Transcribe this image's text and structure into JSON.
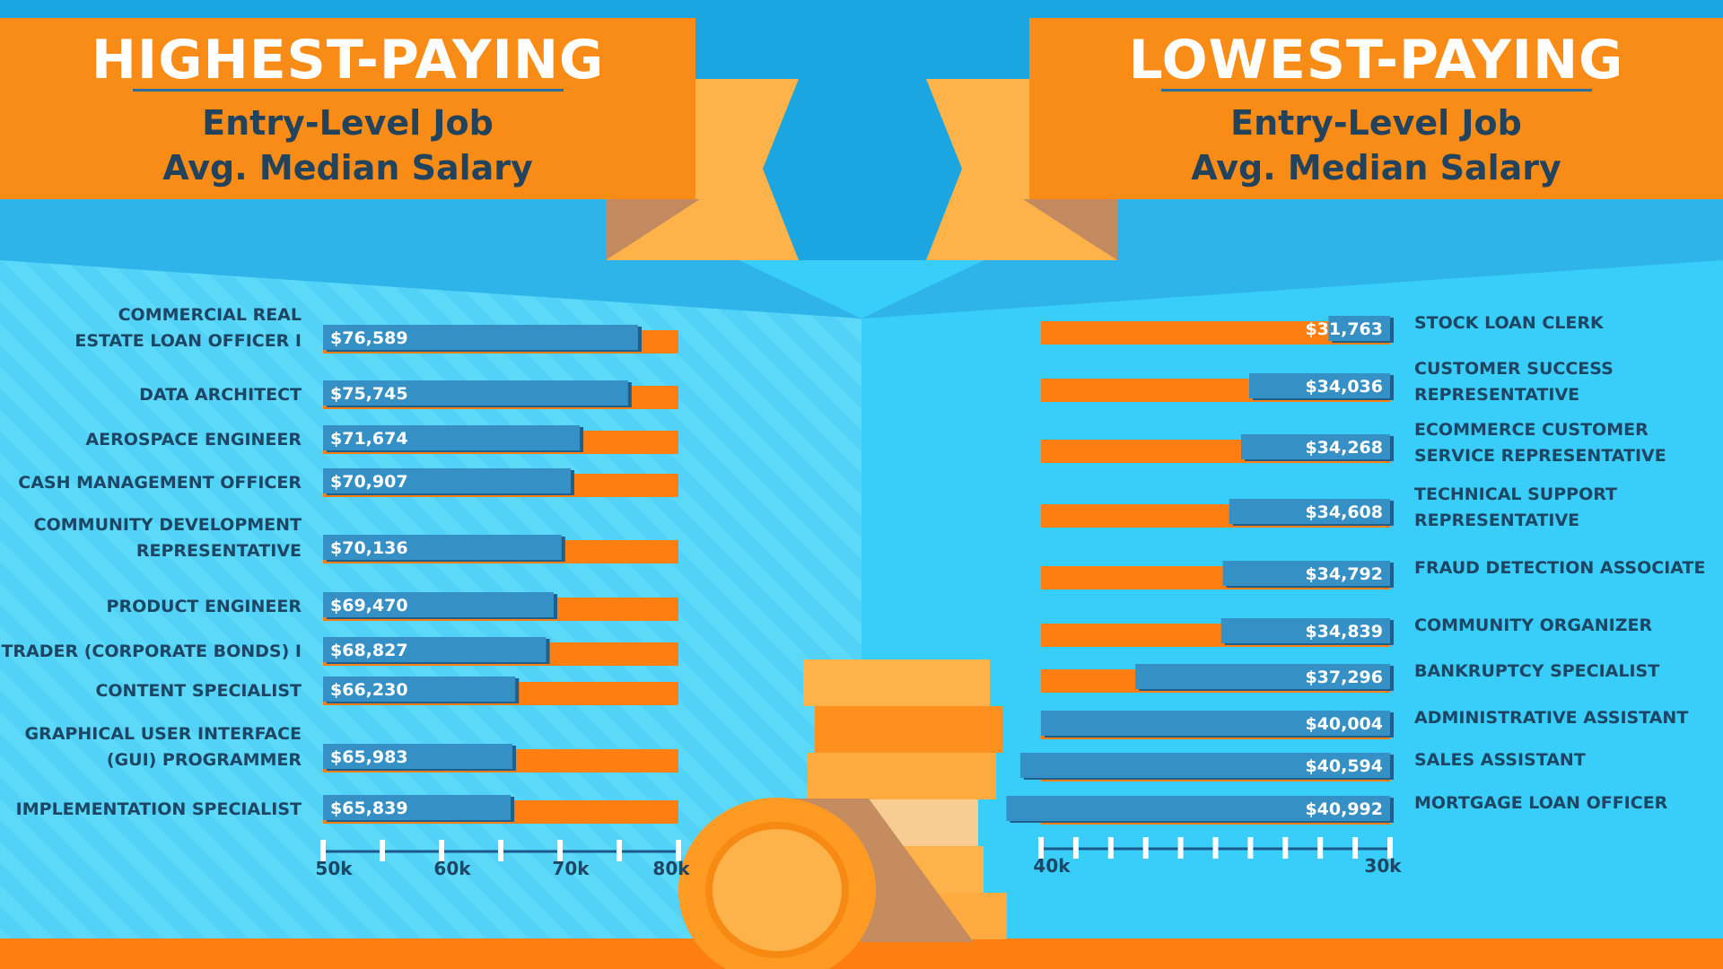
{
  "left": {
    "title": "HIGHEST-PAYING",
    "subtitle_1": "Entry-Level Job",
    "subtitle_2": "Avg. Median Salary"
  },
  "right": {
    "title": "LOWEST-PAYING",
    "subtitle_1": "Entry-Level Job",
    "subtitle_2": "Avg. Median Salary"
  },
  "colors": {
    "bar_salary": "#3590c6",
    "bar_track": "#ff7e12",
    "accent_orange": "#f98c16",
    "label_text": "#1d4564",
    "sky": "#1ba6e2"
  },
  "chart_data": [
    {
      "type": "bar",
      "orientation": "horizontal",
      "title": "HIGHEST-PAYING Entry-Level Job Avg. Median Salary",
      "categories": [
        "COMMERCIAL REAL ESTATE LOAN OFFICER I",
        "DATA ARCHITECT",
        "AEROSPACE ENGINEER",
        "CASH MANAGEMENT OFFICER",
        "COMMUNITY DEVELOPMENT REPRESENTATIVE",
        "PRODUCT ENGINEER",
        "TRADER (CORPORATE BONDS) I",
        "CONTENT SPECIALIST",
        "GRAPHICAL USER INTERFACE (GUI) PROGRAMMER",
        "IMPLEMENTATION SPECIALIST"
      ],
      "label_lines": [
        [
          "COMMERCIAL REAL",
          "ESTATE LOAN OFFICER I"
        ],
        [
          "DATA ARCHITECT"
        ],
        [
          "AEROSPACE ENGINEER"
        ],
        [
          "CASH MANAGEMENT OFFICER"
        ],
        [
          "COMMUNITY DEVELOPMENT",
          "REPRESENTATIVE"
        ],
        [
          "PRODUCT ENGINEER"
        ],
        [
          "TRADER (CORPORATE BONDS) I"
        ],
        [
          "CONTENT SPECIALIST"
        ],
        [
          "GRAPHICAL USER INTERFACE",
          "(GUI) PROGRAMMER"
        ],
        [
          "IMPLEMENTATION SPECIALIST"
        ]
      ],
      "values": [
        76589,
        75745,
        71674,
        70907,
        70136,
        69470,
        68827,
        66230,
        65983,
        65839
      ],
      "value_labels": [
        "$76,589",
        "$75,745",
        "$71,674",
        "$70,907",
        "$70,136",
        "$69,470",
        "$68,827",
        "$66,230",
        "$65,983",
        "$65,839"
      ],
      "xlim": [
        50000,
        80000
      ],
      "ticks": [
        50000,
        60000,
        70000,
        80000
      ],
      "tick_labels": [
        "50k",
        "60k",
        "70k",
        "80k"
      ],
      "direction": "left-to-right"
    },
    {
      "type": "bar",
      "orientation": "horizontal",
      "title": "LOWEST-PAYING Entry-Level Job Avg. Median Salary",
      "categories": [
        "STOCK LOAN CLERK",
        "CUSTOMER SUCCESS REPRESENTATIVE",
        "ECOMMERCE CUSTOMER SERVICE REPRESENTATIVE",
        "TECHNICAL SUPPORT REPRESENTATIVE",
        "FRAUD DETECTION ASSOCIATE",
        "COMMUNITY ORGANIZER",
        "BANKRUPTCY SPECIALIST",
        "ADMINISTRATIVE ASSISTANT",
        "SALES ASSISTANT",
        "MORTGAGE LOAN OFFICER"
      ],
      "label_lines": [
        [
          "STOCK LOAN CLERK"
        ],
        [
          "CUSTOMER SUCCESS",
          "REPRESENTATIVE"
        ],
        [
          "ECOMMERCE CUSTOMER",
          "SERVICE REPRESENTATIVE"
        ],
        [
          "TECHNICAL SUPPORT",
          "REPRESENTATIVE"
        ],
        [
          "FRAUD DETECTION ASSOCIATE"
        ],
        [
          "COMMUNITY ORGANIZER"
        ],
        [
          "BANKRUPTCY SPECIALIST"
        ],
        [
          "ADMINISTRATIVE ASSISTANT"
        ],
        [
          "SALES ASSISTANT"
        ],
        [
          "MORTGAGE LOAN OFFICER"
        ]
      ],
      "values": [
        31763,
        34036,
        34268,
        34608,
        34792,
        34839,
        37296,
        40004,
        40594,
        40992
      ],
      "value_labels": [
        "$31,763",
        "$34,036",
        "$34,268",
        "$34,608",
        "$34,792",
        "$34,839",
        "$37,296",
        "$40,004",
        "$40,594",
        "$40,992"
      ],
      "xlim": [
        40000,
        30000
      ],
      "ticks": [
        40000,
        30000
      ],
      "tick_labels": [
        "40k",
        "30k"
      ],
      "direction": "right-to-left"
    }
  ]
}
